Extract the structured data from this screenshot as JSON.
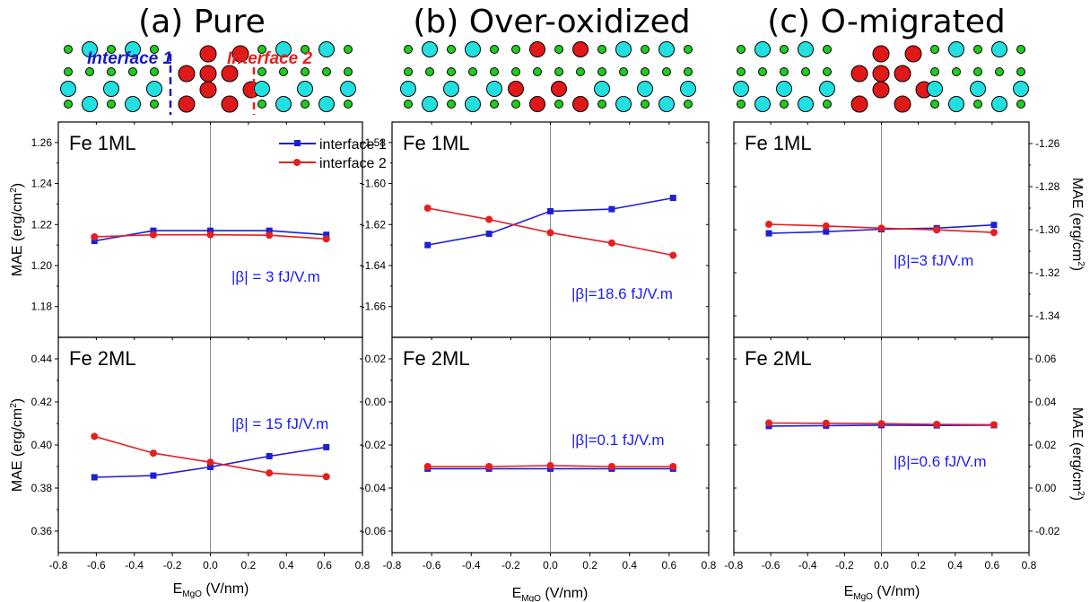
{
  "colors": {
    "series1": "#1f1fd6",
    "series2": "#e61e1e",
    "vline": "#8c8c8c",
    "atom_large": "#22e0e0",
    "atom_small": "#1fcc1f",
    "atom_oxide": "#e01818"
  },
  "panels": [
    {
      "title": "(a) Pure",
      "interface_labels": [
        "Interface 1",
        "Interface 2"
      ]
    },
    {
      "title": "(b) Over-oxidized"
    },
    {
      "title": "(c) O-migrated"
    }
  ],
  "legend": {
    "entries": [
      "interface 1",
      "interface 2"
    ],
    "placement": "top-right"
  },
  "film_labels": {
    "top": "Fe 1ML",
    "bottom": "Fe 2ML"
  },
  "axis": {
    "xlabel_main": "E",
    "xlabel_sub": "MgO",
    "xlabel_unit": " (V/nm)",
    "ylabel_main": "MAE (erg/cm",
    "ylabel_sup": "2",
    "ylabel_end": ")"
  },
  "chart_data": [
    {
      "type": "line",
      "panel": "(a) Pure",
      "film": "Fe 1ML",
      "axis_side": "left",
      "xlim": [
        -0.8,
        0.8
      ],
      "ylim": [
        1.165,
        1.27
      ],
      "xticks": [
        "-0.8",
        "-0.6",
        "-0.4",
        "-0.2",
        "0.0",
        "0.2",
        "0.4",
        "0.6",
        "0.8"
      ],
      "yticks": [
        1.18,
        1.2,
        1.22,
        1.24,
        1.26
      ],
      "ytick_labels": [
        "1.18",
        "1.20",
        "1.22",
        "1.24",
        "1.26"
      ],
      "x": [
        -0.61,
        -0.3,
        0.0,
        0.31,
        0.61
      ],
      "series": [
        {
          "name": "interface 1",
          "values": [
            1.212,
            1.217,
            1.217,
            1.217,
            1.215
          ]
        },
        {
          "name": "interface 2",
          "values": [
            1.214,
            1.215,
            1.215,
            1.2148,
            1.213
          ]
        }
      ],
      "annotation": "|β| = 3 fJ/V.m",
      "legend": true
    },
    {
      "type": "line",
      "panel": "(a) Pure",
      "film": "Fe 2ML",
      "axis_side": "left",
      "xlim": [
        -0.8,
        0.8
      ],
      "ylim": [
        0.35,
        0.45
      ],
      "xticks": [
        "-0.8",
        "-0.6",
        "-0.4",
        "-0.2",
        "0.0",
        "0.2",
        "0.4",
        "0.6",
        "0.8"
      ],
      "yticks": [
        0.36,
        0.38,
        0.4,
        0.42,
        0.44
      ],
      "ytick_labels": [
        "0.36",
        "0.38",
        "0.40",
        "0.42",
        "0.44"
      ],
      "x": [
        -0.61,
        -0.3,
        0.0,
        0.31,
        0.61
      ],
      "series": [
        {
          "name": "interface 1",
          "values": [
            0.385,
            0.3858,
            0.3898,
            0.3948,
            0.399
          ]
        },
        {
          "name": "interface 2",
          "values": [
            0.404,
            0.3962,
            0.392,
            0.387,
            0.3853
          ]
        }
      ],
      "annotation": "|β| = 15 fJ/V.m"
    },
    {
      "type": "line",
      "panel": "(b) Over-oxidized",
      "film": "Fe 1ML",
      "axis_side": "left",
      "xlim": [
        -0.8,
        0.8
      ],
      "ylim": [
        -1.675,
        -1.57
      ],
      "xticks": [
        "-0.8",
        "-0.6",
        "-0.4",
        "-0.2",
        "0.0",
        "0.2",
        "0.4",
        "0.6",
        "0.8"
      ],
      "yticks": [
        -1.66,
        -1.64,
        -1.62,
        -1.6,
        -1.58
      ],
      "ytick_labels": [
        "-1.66",
        "-1.64",
        "-1.62",
        "-1.60",
        "-1.58"
      ],
      "x": [
        -0.62,
        -0.31,
        0.0,
        0.31,
        0.62
      ],
      "series": [
        {
          "name": "interface 1",
          "values": [
            -1.63,
            -1.6245,
            -1.6135,
            -1.6125,
            -1.607
          ]
        },
        {
          "name": "interface 2",
          "values": [
            -1.612,
            -1.6175,
            -1.624,
            -1.629,
            -1.635
          ]
        }
      ],
      "annotation": "|β|=18.6 fJ/V.m"
    },
    {
      "type": "line",
      "panel": "(b) Over-oxidized",
      "film": "Fe 2ML",
      "axis_side": "left",
      "xlim": [
        -0.8,
        0.8
      ],
      "ylim": [
        -0.07,
        0.03
      ],
      "xticks": [
        "-0.8",
        "-0.6",
        "-0.4",
        "-0.2",
        "0.0",
        "0.2",
        "0.4",
        "0.6",
        "0.8"
      ],
      "yticks": [
        -0.06,
        -0.04,
        -0.02,
        0.0,
        0.02
      ],
      "ytick_labels": [
        "-0.06",
        "-0.04",
        "-0.02",
        "0.00",
        "0.02"
      ],
      "x": [
        -0.62,
        -0.31,
        0.0,
        0.31,
        0.62
      ],
      "series": [
        {
          "name": "interface 1",
          "values": [
            -0.031,
            -0.031,
            -0.031,
            -0.031,
            -0.031
          ]
        },
        {
          "name": "interface 2",
          "values": [
            -0.03,
            -0.03,
            -0.0296,
            -0.03,
            -0.03
          ]
        }
      ],
      "annotation": "|β|=0.1 fJ/V.m"
    },
    {
      "type": "line",
      "panel": "(c) O-migrated",
      "film": "Fe 1ML",
      "axis_side": "right",
      "xlim": [
        -0.8,
        0.8
      ],
      "ylim": [
        -1.35,
        -1.25
      ],
      "xticks": [
        "-0.8",
        "-0.6",
        "-0.4",
        "-0.2",
        "0.0",
        "0.2",
        "0.4",
        "0.6",
        "0.8"
      ],
      "yticks": [
        -1.34,
        -1.32,
        -1.3,
        -1.28,
        -1.26
      ],
      "ytick_labels": [
        "-1.34",
        "-1.32",
        "-1.30",
        "-1.28",
        "-1.26"
      ],
      "x": [
        -0.61,
        -0.3,
        0.0,
        0.3,
        0.61
      ],
      "series": [
        {
          "name": "interface 1",
          "values": [
            -1.3017,
            -1.3009,
            -1.2998,
            -1.2993,
            -1.2978
          ]
        },
        {
          "name": "interface 2",
          "values": [
            -1.2975,
            -1.2983,
            -1.2993,
            -1.3001,
            -1.3013
          ]
        }
      ],
      "annotation": "|β|=3 fJ/V.m"
    },
    {
      "type": "line",
      "panel": "(c) O-migrated",
      "film": "Fe 2ML",
      "axis_side": "right",
      "xlim": [
        -0.8,
        0.8
      ],
      "ylim": [
        -0.03,
        0.07
      ],
      "xticks": [
        "-0.8",
        "-0.6",
        "-0.4",
        "-0.2",
        "0.0",
        "0.2",
        "0.4",
        "0.6",
        "0.8"
      ],
      "yticks": [
        -0.02,
        0.0,
        0.02,
        0.04,
        0.06
      ],
      "ytick_labels": [
        "-0.02",
        "0.00",
        "0.02",
        "0.04",
        "0.06"
      ],
      "x": [
        -0.61,
        -0.3,
        0.0,
        0.3,
        0.61
      ],
      "series": [
        {
          "name": "interface 1",
          "values": [
            0.0288,
            0.029,
            0.0292,
            0.0291,
            0.0292
          ]
        },
        {
          "name": "interface 2",
          "values": [
            0.0302,
            0.0301,
            0.0299,
            0.0296,
            0.0294
          ]
        }
      ],
      "annotation": "|β|=0.6 fJ/V.m"
    }
  ]
}
